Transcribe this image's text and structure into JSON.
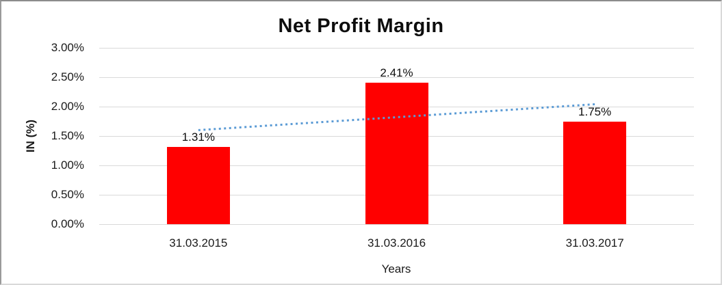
{
  "chart_data": {
    "type": "bar",
    "title": "Net Profit Margin",
    "xlabel": "Years",
    "ylabel": "IN (%)",
    "categories": [
      "31.03.2015",
      "31.03.2016",
      "31.03.2017"
    ],
    "values": [
      1.31,
      2.41,
      1.75
    ],
    "data_labels": [
      "1.31%",
      "2.41%",
      "1.75%"
    ],
    "ylim": [
      0,
      3
    ],
    "ytick_step": 0.5,
    "ytick_labels": [
      "0.00%",
      "0.50%",
      "1.00%",
      "1.50%",
      "2.00%",
      "2.50%",
      "3.00%"
    ],
    "grid": true,
    "legend": false,
    "bar_color": "#FF0000",
    "gridline_color": "#D9D9D9",
    "trendline": {
      "style": "dotted",
      "color": "#5B9BD5",
      "start_value": 1.6,
      "end_value": 2.04
    }
  }
}
